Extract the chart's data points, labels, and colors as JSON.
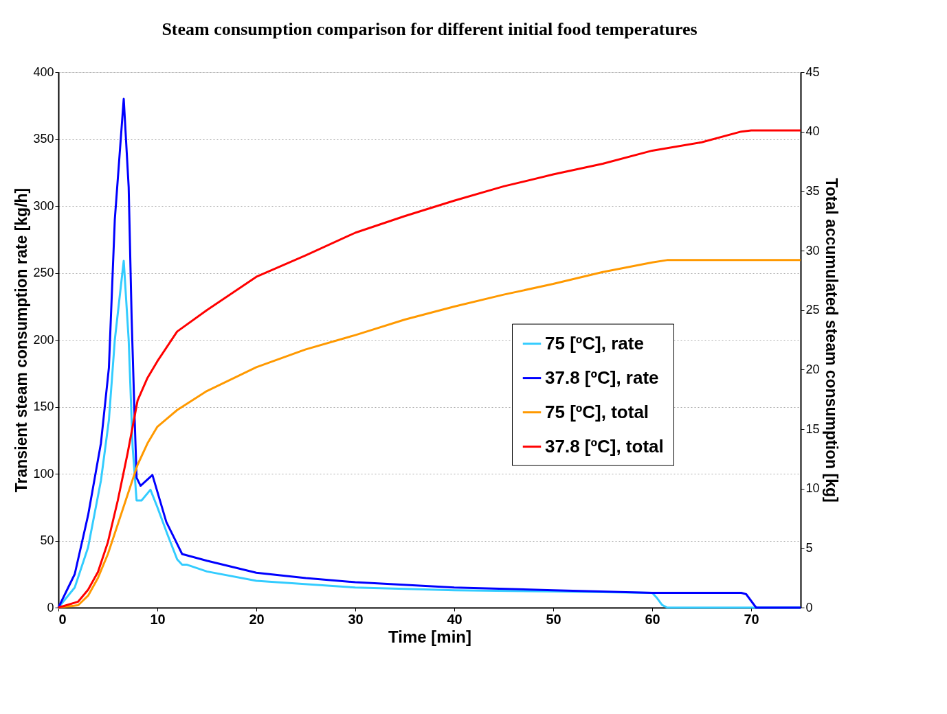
{
  "chart_data": {
    "type": "line",
    "title": "Steam consumption comparison for different initial food temperatures",
    "xlabel": "Time [min]",
    "ylabel": "Transient steam consumption rate [kg/h]",
    "y2label": "Total accumulated steam consumption [kg]",
    "xlim": [
      0,
      75
    ],
    "xticks": [
      0,
      10,
      20,
      30,
      40,
      50,
      60,
      70
    ],
    "ylim": [
      0,
      400
    ],
    "yticks": [
      0,
      50,
      100,
      150,
      200,
      250,
      300,
      350,
      400
    ],
    "y2lim": [
      0,
      45
    ],
    "y2ticks": [
      0,
      5,
      10,
      15,
      20,
      25,
      30,
      35,
      40,
      45
    ],
    "grid": "y",
    "legend": "right",
    "marker": "none",
    "line_style": "solid",
    "series": [
      {
        "name": "75 [ºC], rate",
        "color": "#33ccff",
        "x": [
          0,
          1.65,
          3,
          4.3,
          5.1,
          5.7,
          6.6,
          7.1,
          7.5,
          7.9,
          8.4,
          9.3,
          10,
          11,
          12,
          12.5,
          13,
          15,
          20,
          30,
          40,
          50,
          60,
          60.5,
          61,
          61.5,
          75
        ],
        "values": [
          0,
          15,
          45,
          95,
          140,
          200,
          259,
          200,
          120,
          80,
          80,
          88,
          75,
          55,
          36,
          32,
          32,
          27,
          20,
          15,
          13,
          12,
          11,
          7,
          2,
          0,
          0
        ]
      },
      {
        "name": "37.8 [ºC], rate",
        "color": "#0000ff",
        "x": [
          0,
          1.65,
          3,
          4.3,
          5.1,
          5.7,
          6.6,
          7.1,
          7.4,
          7.7,
          7.9,
          8.3,
          9.5,
          10.9,
          12.5,
          15,
          20,
          25,
          30,
          40,
          50,
          60,
          69,
          69.5,
          70,
          70.5,
          75
        ],
        "values": [
          0,
          25,
          69,
          123,
          179,
          290,
          380,
          314,
          216,
          142,
          97,
          91,
          99,
          64,
          40,
          35,
          26,
          22,
          19,
          15,
          13,
          11,
          11,
          10,
          5,
          0,
          0
        ]
      },
      {
        "name": "75 [ºC], total",
        "color": "#ff9900",
        "axis": "y2",
        "x": [
          0,
          2,
          3,
          4,
          5,
          6,
          7,
          8,
          9,
          10,
          12,
          15,
          20,
          25,
          30,
          35,
          40,
          45,
          50,
          55,
          60,
          61.5,
          75
        ],
        "values": [
          0,
          0.2,
          1,
          2.5,
          4.5,
          7,
          9.5,
          12,
          13.8,
          15.2,
          16.6,
          18.2,
          20.2,
          21.7,
          22.9,
          24.2,
          25.3,
          26.3,
          27.2,
          28.2,
          29.0,
          29.2,
          29.2
        ]
      },
      {
        "name": "37.8 [ºC], total",
        "color": "#ff0000",
        "axis": "y2",
        "x": [
          0,
          2,
          3,
          4,
          5,
          6,
          7,
          8,
          9,
          10,
          12,
          15,
          20,
          25,
          30,
          35,
          40,
          45,
          50,
          55,
          60,
          65,
          69,
          70,
          75
        ],
        "values": [
          0,
          0.5,
          1.5,
          3,
          5.5,
          9,
          13,
          17.4,
          19.3,
          20.7,
          23.2,
          25.0,
          27.8,
          29.6,
          31.5,
          32.9,
          34.2,
          35.4,
          36.4,
          37.3,
          38.4,
          39.1,
          40.0,
          40.1,
          40.1
        ]
      }
    ]
  }
}
